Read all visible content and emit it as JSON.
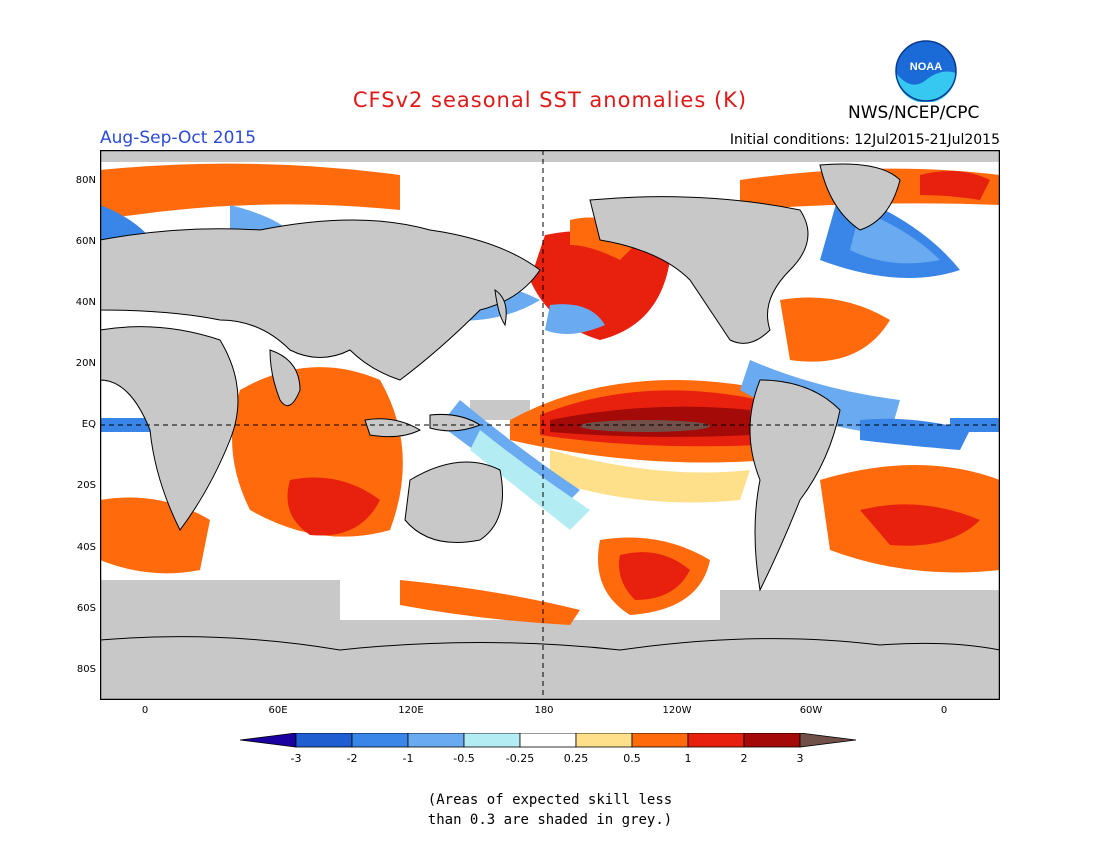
{
  "header": {
    "title": "CFSv2 seasonal SST anomalies (K)",
    "agency": "NWS/NCEP/CPC",
    "logo_text": "NOAA",
    "period": "Aug-Sep-Oct 2015",
    "initial_conditions": "Initial conditions: 12Jul2015-21Jul2015"
  },
  "axes": {
    "lat_labels": [
      "80N",
      "60N",
      "40N",
      "20N",
      "EQ",
      "20S",
      "40S",
      "60S",
      "80S"
    ],
    "lon_labels": [
      "0",
      "60E",
      "120E",
      "180",
      "120W",
      "60W",
      "0"
    ]
  },
  "colorbar": {
    "labels": [
      "-3",
      "-2",
      "-1",
      "-0.5",
      "-0.25",
      "0.25",
      "0.5",
      "1",
      "2",
      "3"
    ],
    "colors": [
      "#1a00a0",
      "#1e5ed0",
      "#3a86e8",
      "#6aaaf0",
      "#b4ecf4",
      "#ffffff",
      "#ffe08a",
      "#ff6a0c",
      "#e8200e",
      "#a40a08",
      "#705048"
    ]
  },
  "note": {
    "line1": "(Areas of expected skill less",
    "line2": "than 0.3 are shaded in grey.)"
  },
  "colors": {
    "land": "#c8c8c8",
    "skill_grey": "#c8c8c8",
    "title": "#e01818",
    "period": "#2a4ad8"
  }
}
